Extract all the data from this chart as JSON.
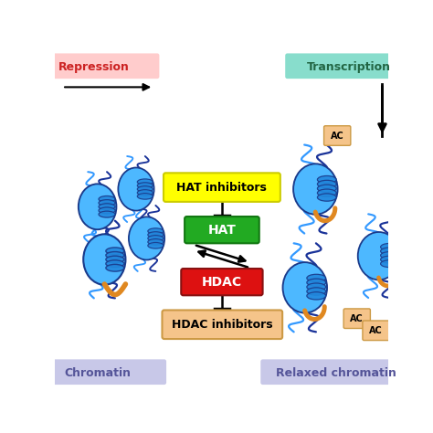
{
  "bg_color": "#ffffff",
  "repression_label": "Repression",
  "repression_bg": "#ffcccc",
  "repression_text": "#cc2222",
  "transcription_label": "Transcription",
  "transcription_bg": "#88ddcc",
  "transcription_text": "#226644",
  "chromatin_label": "Chromatin",
  "chromatin_bg": "#c8c8e8",
  "chromatin_text": "#555599",
  "relaxed_label": "Relaxed chromatin",
  "relaxed_bg": "#c8c8e8",
  "relaxed_text": "#555599",
  "hat_label": "HAT",
  "hat_bg": "#22aa22",
  "hat_text": "#ffffff",
  "hdac_label": "HDAC",
  "hdac_bg": "#dd1111",
  "hdac_text": "#ffffff",
  "hat_inh_label": "HAT inhibitors",
  "hat_inh_bg": "#ffff00",
  "hat_inh_text": "#000000",
  "hdac_inh_label": "HDAC inhibitors",
  "hdac_inh_bg": "#f5c48a",
  "hdac_inh_text": "#000000",
  "ac_bg": "#f5c48a",
  "ac_text": "#000000",
  "histone_light": "#4db8ff",
  "histone_mid": "#2288dd",
  "histone_dark": "#1a3a8a",
  "dna_color_bright": "#3399ff",
  "dna_color_dark": "#1a3399",
  "tail_color": "#e08820"
}
